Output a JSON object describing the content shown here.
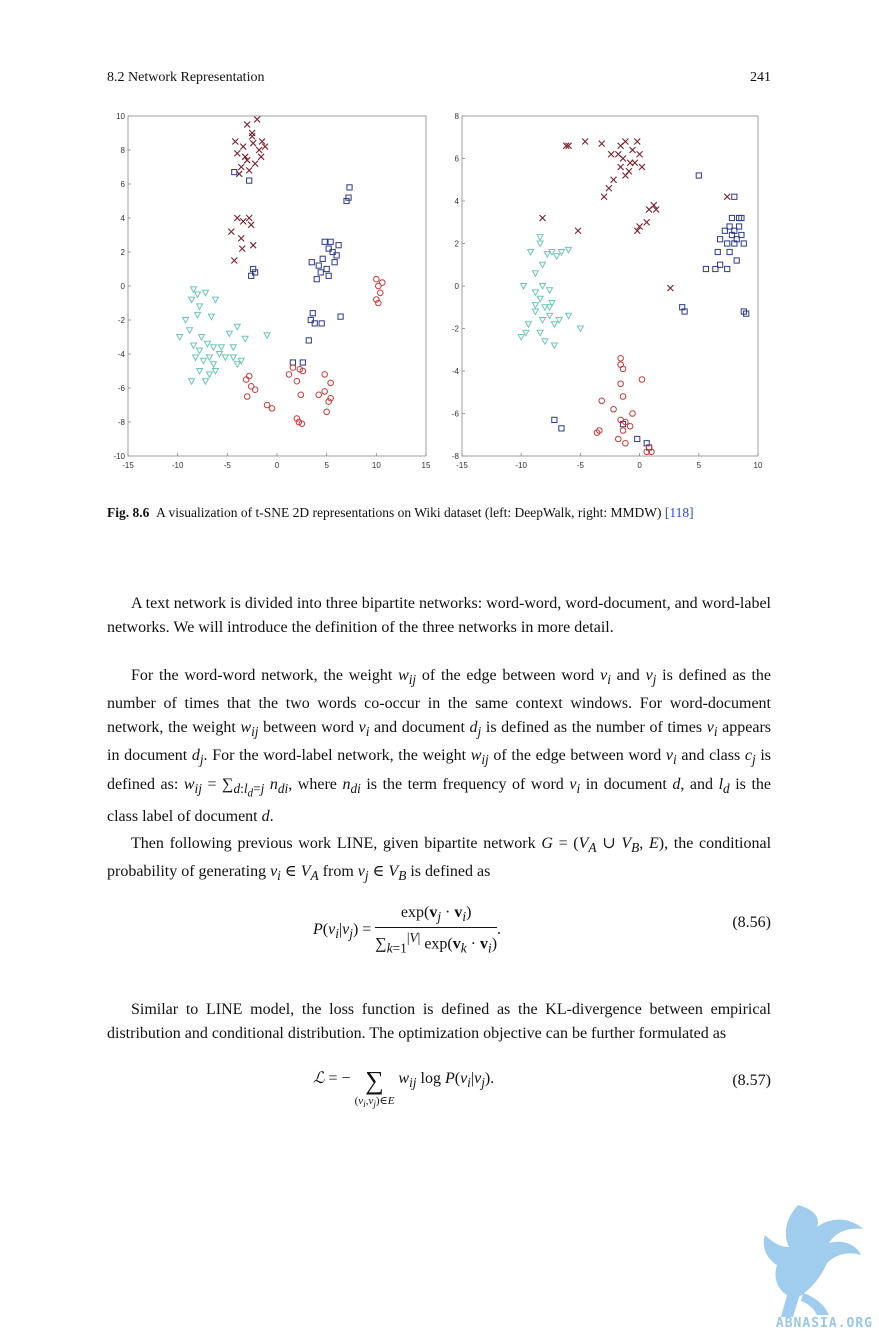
{
  "header": {
    "section": "8.2   Network Representation",
    "page": "241"
  },
  "figure": {
    "left_plot": {
      "xticks": [
        "-15",
        "-10",
        "-5",
        "0",
        "5",
        "10",
        "15"
      ],
      "yticks": [
        "10",
        "8",
        "6",
        "4",
        "2",
        "0",
        "-2",
        "-4",
        "-6",
        "-8",
        "-10"
      ]
    },
    "right_plot": {
      "xticks": [
        "-15",
        "-10",
        "-5",
        "0",
        "5",
        "10"
      ],
      "yticks": [
        "8",
        "6",
        "4",
        "2",
        "0",
        "-2",
        "-4",
        "-6",
        "-8"
      ]
    },
    "colors": {
      "cross": "#7a1f2b",
      "square": "#2b3a8c",
      "circle": "#cc3b3b",
      "triangle": "#6cc7b8"
    }
  },
  "chart_data": [
    {
      "type": "scatter",
      "xlim": [
        -15,
        15
      ],
      "ylim": [
        -10,
        10
      ],
      "series": [
        {
          "marker": "x",
          "points": [
            [
              -3,
              9.5
            ],
            [
              -2,
              9.8
            ],
            [
              -2.5,
              8.8
            ],
            [
              -1.5,
              8.5
            ],
            [
              -3.2,
              7.6
            ],
            [
              -2.2,
              7.2
            ],
            [
              -1.8,
              8
            ],
            [
              -2.8,
              6.8
            ],
            [
              -3.8,
              6.6
            ],
            [
              -1.2,
              8.2
            ],
            [
              -3.4,
              8.2
            ],
            [
              -2.4,
              8.4
            ],
            [
              -4,
              7.8
            ],
            [
              -3.6,
              7
            ],
            [
              -1.6,
              7.6
            ],
            [
              -2.5,
              9
            ],
            [
              -4.2,
              8.5
            ],
            [
              -3,
              7.4
            ],
            [
              -4,
              4
            ],
            [
              -3.4,
              3.8
            ],
            [
              -2.6,
              3.6
            ],
            [
              -4.6,
              3.2
            ],
            [
              -3.6,
              2.8
            ],
            [
              -2.4,
              2.4
            ],
            [
              -2.8,
              4
            ],
            [
              -4.3,
              1.5
            ],
            [
              -3.5,
              2.2
            ]
          ]
        },
        {
          "marker": "square",
          "points": [
            [
              7.3,
              5.8
            ],
            [
              7.2,
              5.2
            ],
            [
              7,
              5
            ],
            [
              4.8,
              2.6
            ],
            [
              5.2,
              2.2
            ],
            [
              4.6,
              1.6
            ],
            [
              5.6,
              2
            ],
            [
              4.2,
              1.2
            ],
            [
              5,
              1
            ],
            [
              4.4,
              0.8
            ],
            [
              5.8,
              1.4
            ],
            [
              5.4,
              2.6
            ],
            [
              6.2,
              2.4
            ],
            [
              5.2,
              0.6
            ],
            [
              3.5,
              1.4
            ],
            [
              6,
              1.8
            ],
            [
              4,
              0.4
            ],
            [
              -2.4,
              1
            ],
            [
              -2.6,
              0.6
            ],
            [
              -2.2,
              0.8
            ],
            [
              4.5,
              -2.2
            ],
            [
              3.6,
              -1.6
            ],
            [
              3.4,
              -2
            ],
            [
              3.8,
              -2.2
            ],
            [
              6.4,
              -1.8
            ],
            [
              3.2,
              -3.2
            ],
            [
              2.6,
              -4.5
            ],
            [
              1.6,
              -4.5
            ],
            [
              -2.8,
              6.2
            ],
            [
              -4.3,
              6.7
            ]
          ]
        },
        {
          "marker": "circle",
          "points": [
            [
              10,
              0.4
            ],
            [
              10.2,
              0
            ],
            [
              10.4,
              -0.4
            ],
            [
              10,
              -0.8
            ],
            [
              10.6,
              0.2
            ],
            [
              10.2,
              -1
            ],
            [
              1.6,
              -4.8
            ],
            [
              2.3,
              -4.9
            ],
            [
              2.6,
              -5
            ],
            [
              2,
              -5.6
            ],
            [
              1.2,
              -5.2
            ],
            [
              4.8,
              -5.2
            ],
            [
              5.4,
              -5.7
            ],
            [
              4.8,
              -6.2
            ],
            [
              5.4,
              -6.6
            ],
            [
              4.2,
              -6.4
            ],
            [
              5.2,
              -6.8
            ],
            [
              5,
              -7.4
            ],
            [
              -3.1,
              -5.5
            ],
            [
              -2.6,
              -5.9
            ],
            [
              -2.2,
              -6.1
            ],
            [
              -3,
              -6.5
            ],
            [
              -1,
              -7
            ],
            [
              -0.5,
              -7.2
            ],
            [
              2.2,
              -8
            ],
            [
              2.5,
              -8.1
            ],
            [
              2,
              -7.8
            ],
            [
              2.4,
              -6.4
            ],
            [
              -2.8,
              -5.3
            ]
          ]
        },
        {
          "marker": "triangle",
          "points": [
            [
              -8.4,
              -0.2
            ],
            [
              -8,
              -0.5
            ],
            [
              -8.6,
              -0.8
            ],
            [
              -7.2,
              -0.4
            ],
            [
              -6.2,
              -0.8
            ],
            [
              -7.8,
              -1.2
            ],
            [
              -8,
              -1.7
            ],
            [
              -6.6,
              -1.8
            ],
            [
              -9.2,
              -2
            ],
            [
              -8.8,
              -2.6
            ],
            [
              -9.8,
              -3
            ],
            [
              -7.6,
              -3
            ],
            [
              -8.4,
              -3.5
            ],
            [
              -7,
              -3.4
            ],
            [
              -6.4,
              -3.6
            ],
            [
              -8.2,
              -4.2
            ],
            [
              -7.4,
              -4.4
            ],
            [
              -6.8,
              -4.2
            ],
            [
              -7.8,
              -5
            ],
            [
              -6.2,
              -5
            ],
            [
              -8.6,
              -5.6
            ],
            [
              -7.2,
              -5.6
            ],
            [
              -6.4,
              -4.6
            ],
            [
              -5.8,
              -4
            ],
            [
              -4.4,
              -3.6
            ],
            [
              -4.8,
              -2.8
            ],
            [
              -3.2,
              -3.1
            ],
            [
              -4,
              -2.4
            ],
            [
              -4.4,
              -4.2
            ],
            [
              -4,
              -4.6
            ],
            [
              -3.6,
              -4.4
            ],
            [
              -5.6,
              -3.6
            ],
            [
              -5.2,
              -4.2
            ],
            [
              -7.8,
              -3.8
            ],
            [
              -6.8,
              -5.2
            ],
            [
              -1,
              -2.9
            ]
          ]
        }
      ]
    },
    {
      "type": "scatter",
      "xlim": [
        -15,
        10
      ],
      "ylim": [
        -8,
        8
      ],
      "series": [
        {
          "marker": "x",
          "points": [
            [
              -6,
              6.6
            ],
            [
              -4.6,
              6.8
            ],
            [
              -3.2,
              6.7
            ],
            [
              -2.4,
              6.2
            ],
            [
              -1.6,
              6.6
            ],
            [
              -1.2,
              6.8
            ],
            [
              -0.6,
              6.4
            ],
            [
              -1.4,
              6
            ],
            [
              -0.8,
              5.8
            ],
            [
              0,
              6.2
            ],
            [
              -1.6,
              5.6
            ],
            [
              -0.9,
              5.4
            ],
            [
              0.2,
              5.6
            ],
            [
              -1.2,
              5.2
            ],
            [
              -0.4,
              5.8
            ],
            [
              -2.2,
              5
            ],
            [
              -2.6,
              4.6
            ],
            [
              -3,
              4.2
            ],
            [
              -0.2,
              6.8
            ],
            [
              -1.8,
              6.2
            ],
            [
              -8.2,
              3.2
            ],
            [
              -5.2,
              2.6
            ],
            [
              0.8,
              3.6
            ],
            [
              1.2,
              3.8
            ],
            [
              1.4,
              3.6
            ],
            [
              0.6,
              3
            ],
            [
              0,
              2.8
            ],
            [
              -0.2,
              2.6
            ],
            [
              2.6,
              -0.1
            ],
            [
              7.4,
              4.2
            ],
            [
              -6.2,
              6.6
            ]
          ]
        },
        {
          "marker": "square",
          "points": [
            [
              5,
              5.2
            ],
            [
              8,
              4.2
            ],
            [
              7.8,
              3.2
            ],
            [
              8.4,
              3.2
            ],
            [
              8.6,
              3.2
            ],
            [
              7.6,
              2.8
            ],
            [
              8,
              2.6
            ],
            [
              8.4,
              2.8
            ],
            [
              7.2,
              2.6
            ],
            [
              7.8,
              2.4
            ],
            [
              8.2,
              2.2
            ],
            [
              8.6,
              2.4
            ],
            [
              7.4,
              2
            ],
            [
              8,
              2
            ],
            [
              8.8,
              2
            ],
            [
              6.8,
              2.2
            ],
            [
              7.6,
              1.6
            ],
            [
              8.2,
              1.2
            ],
            [
              6.6,
              1.6
            ],
            [
              6.8,
              1
            ],
            [
              6.4,
              0.8
            ],
            [
              7.4,
              0.8
            ],
            [
              5.6,
              0.8
            ],
            [
              3.6,
              -1
            ],
            [
              3.8,
              -1.2
            ],
            [
              8.8,
              -1.2
            ],
            [
              9,
              -1.3
            ],
            [
              -7.2,
              -6.3
            ],
            [
              -6.6,
              -6.7
            ],
            [
              0.6,
              -7.4
            ],
            [
              0.8,
              -7.6
            ],
            [
              -1.4,
              -6.5
            ],
            [
              -0.2,
              -7.2
            ]
          ]
        },
        {
          "marker": "circle",
          "points": [
            [
              -1.6,
              -3.4
            ],
            [
              -1.6,
              -3.7
            ],
            [
              -1.4,
              -3.9
            ],
            [
              -1.6,
              -4.6
            ],
            [
              0.2,
              -4.4
            ],
            [
              -1.4,
              -5.2
            ],
            [
              -3.2,
              -5.4
            ],
            [
              -2.2,
              -5.8
            ],
            [
              -0.6,
              -6
            ],
            [
              -1.6,
              -6.3
            ],
            [
              -1.2,
              -6.4
            ],
            [
              -0.8,
              -6.6
            ],
            [
              -1.4,
              -6.8
            ],
            [
              -1.8,
              -7.2
            ],
            [
              -1.2,
              -7.4
            ],
            [
              -3.4,
              -6.8
            ],
            [
              -3.6,
              -6.9
            ],
            [
              0.8,
              -7.6
            ],
            [
              1,
              -7.8
            ],
            [
              0.6,
              -7.8
            ]
          ]
        },
        {
          "marker": "triangle",
          "points": [
            [
              -8.4,
              2.3
            ],
            [
              -8.4,
              2
            ],
            [
              -9.2,
              1.6
            ],
            [
              -7.8,
              1.5
            ],
            [
              -7.4,
              1.6
            ],
            [
              -7,
              1.4
            ],
            [
              -6.6,
              1.6
            ],
            [
              -6,
              1.7
            ],
            [
              -8.2,
              1
            ],
            [
              -8.8,
              0.6
            ],
            [
              -9.8,
              0
            ],
            [
              -8.8,
              -0.3
            ],
            [
              -8.2,
              0
            ],
            [
              -7.6,
              -0.2
            ],
            [
              -8.4,
              -0.6
            ],
            [
              -7.4,
              -0.8
            ],
            [
              -8,
              -1
            ],
            [
              -8.8,
              -1.2
            ],
            [
              -7.6,
              -1.4
            ],
            [
              -8.2,
              -1.6
            ],
            [
              -9.4,
              -1.8
            ],
            [
              -10,
              -2.4
            ],
            [
              -8.4,
              -2.2
            ],
            [
              -7.2,
              -1.8
            ],
            [
              -6.8,
              -1.6
            ],
            [
              -8,
              -2.6
            ],
            [
              -6,
              -1.4
            ],
            [
              -5,
              -2
            ],
            [
              -7.2,
              -2.8
            ],
            [
              -9.6,
              -2.2
            ],
            [
              -7.6,
              -1
            ],
            [
              -8.8,
              -0.9
            ]
          ]
        }
      ]
    }
  ],
  "caption": {
    "label": "Fig. 8.6",
    "text": "A visualization of t-SNE 2D representations on Wiki dataset (left: DeepWalk, right: MMDW)",
    "citation": "[118]"
  },
  "body": {
    "p1": "A text network is divided into three bipartite networks: word-word, word-document, and word-label networks. We will introduce the definition of the three networks in more detail.",
    "p4": "Similar to LINE model, the loss function is defined as the KL-divergence between empirical distribution and conditional distribution. The optimization objective can be further formulated as"
  },
  "equations": {
    "eq56_num": "(8.56)",
    "eq57_num": "(8.57)"
  },
  "watermark": "ABNASIA.ORG"
}
